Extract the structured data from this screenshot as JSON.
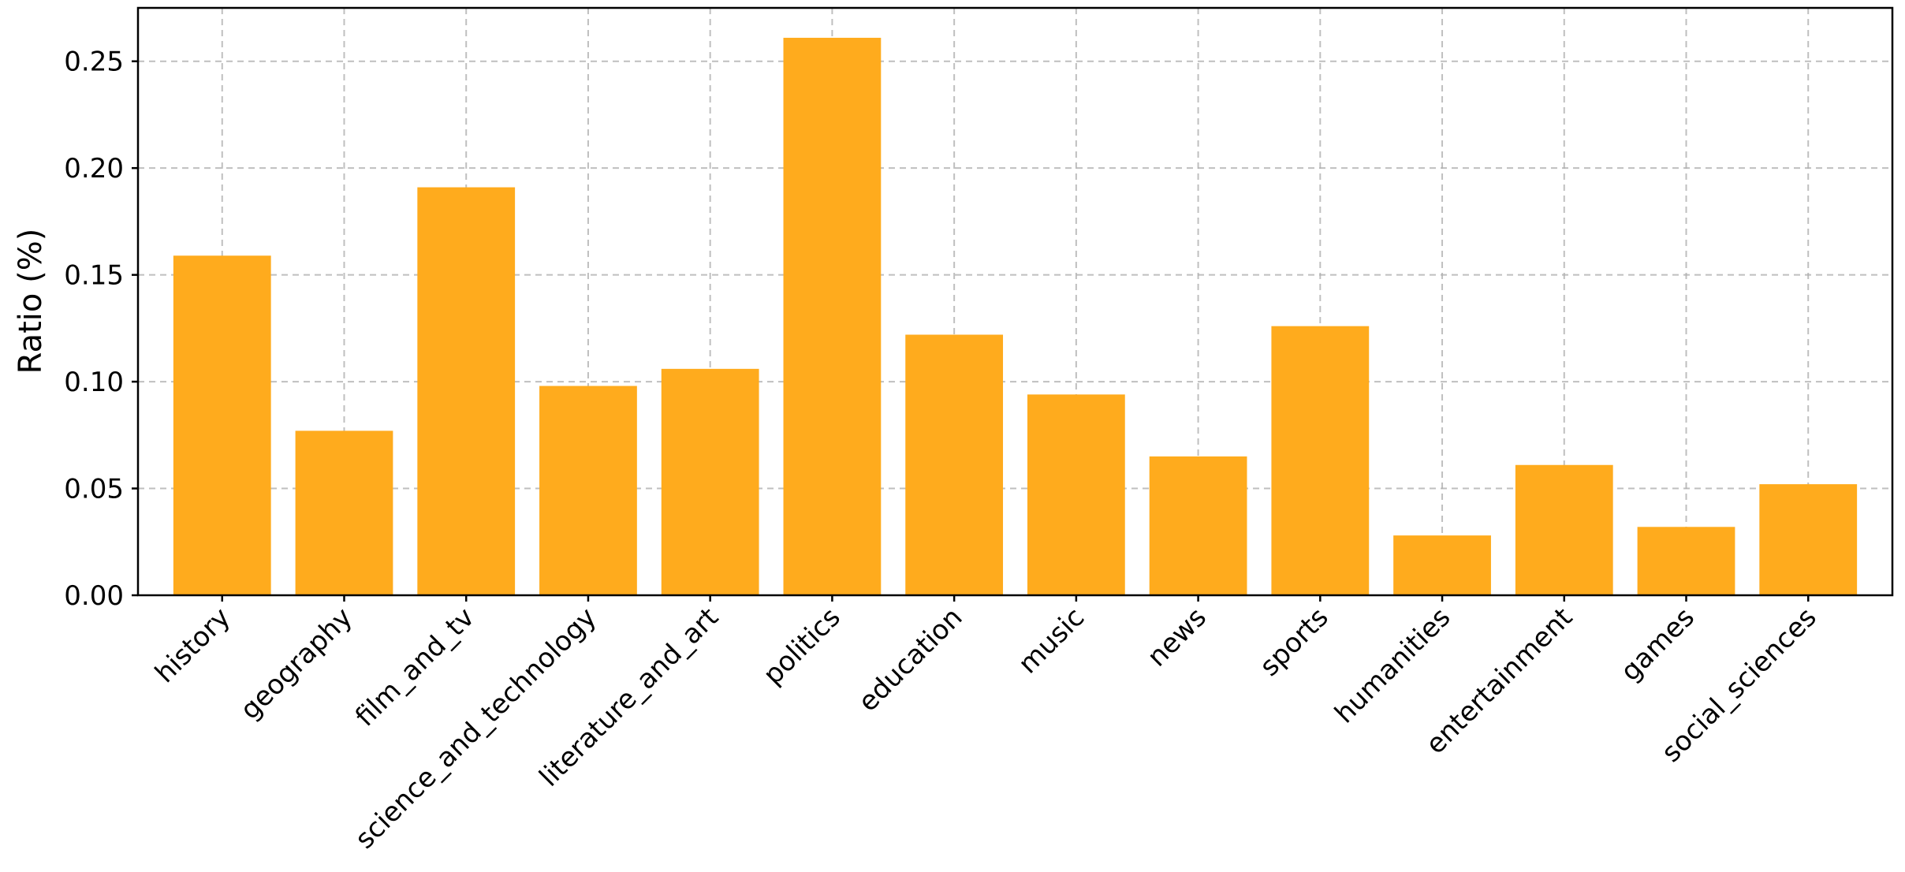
{
  "chart_data": {
    "type": "bar",
    "categories": [
      "history",
      "geography",
      "film_and_tv",
      "science_and_technology",
      "literature_and_art",
      "politics",
      "education",
      "music",
      "news",
      "sports",
      "humanities",
      "entertainment",
      "games",
      "social_sciences"
    ],
    "values": [
      0.159,
      0.077,
      0.191,
      0.098,
      0.106,
      0.261,
      0.122,
      0.094,
      0.065,
      0.126,
      0.028,
      0.061,
      0.032,
      0.052
    ],
    "title": "",
    "xlabel": "",
    "ylabel": "Ratio (%)",
    "ylim": [
      0,
      0.275
    ],
    "yticks": [
      "0.00",
      "0.05",
      "0.10",
      "0.15",
      "0.20",
      "0.25"
    ],
    "grid": true,
    "bar_color": "#FFAB1D"
  }
}
